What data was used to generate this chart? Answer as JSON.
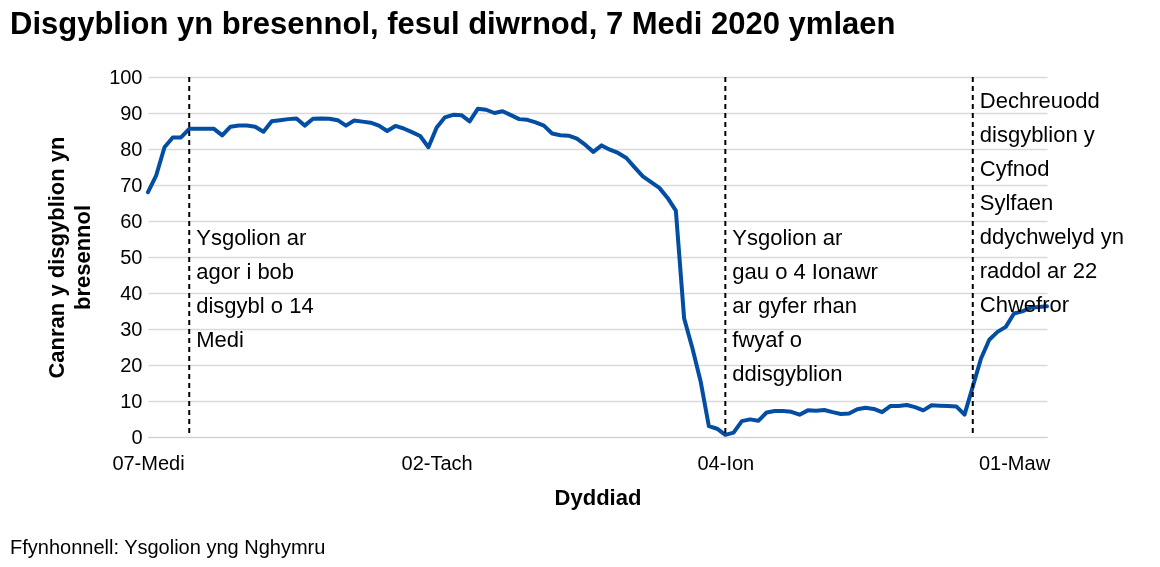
{
  "chart_data": {
    "type": "line",
    "title": "Disgyblion yn bresennol, fesul diwrnod, 7 Medi 2020 ymlaen",
    "xlabel": "Dyddiad",
    "ylabel": "Canran y disgyblion yn bresennol",
    "categories": [
      "07-Medi",
      null,
      null,
      null,
      null,
      null,
      null,
      null,
      null,
      null,
      null,
      null,
      null,
      null,
      null,
      null,
      null,
      null,
      null,
      null,
      null,
      null,
      null,
      null,
      null,
      null,
      null,
      null,
      null,
      null,
      null,
      null,
      null,
      null,
      null,
      "02-Tach",
      null,
      null,
      null,
      null,
      null,
      null,
      null,
      null,
      null,
      null,
      null,
      null,
      null,
      null,
      null,
      null,
      null,
      null,
      null,
      null,
      null,
      null,
      null,
      null,
      null,
      null,
      null,
      null,
      null,
      null,
      null,
      null,
      null,
      null,
      "04-Ion",
      null,
      null,
      null,
      null,
      null,
      null,
      null,
      null,
      null,
      null,
      null,
      null,
      null,
      null,
      null,
      null,
      null,
      null,
      null,
      null,
      null,
      null,
      null,
      null,
      null,
      null,
      null,
      null,
      null,
      null,
      null,
      null,
      null,
      null,
      "01-Maw",
      null,
      null,
      null,
      null
    ],
    "series": [
      {
        "color": "#034ea2",
        "values": [
          68,
          72.7,
          80.5,
          83.2,
          83.2,
          85.6,
          85.6,
          85.6,
          85.6,
          83.8,
          86.2,
          86.5,
          86.5,
          86.2,
          84.8,
          87.7,
          88,
          88.3,
          88.5,
          86.5,
          88.4,
          88.5,
          88.4,
          88,
          86.5,
          87.9,
          87.6,
          87.3,
          86.5,
          85,
          86.4,
          85.7,
          84.7,
          83.6,
          80.5,
          86,
          88.8,
          89.5,
          89.4,
          87.7,
          91.2,
          90.9,
          90,
          90.5,
          89.4,
          88.3,
          88.1,
          87.4,
          86.5,
          84.3,
          83.8,
          83.7,
          82.9,
          81.2,
          79.2,
          81,
          79.8,
          78.9,
          77.5,
          74.9,
          72.4,
          70.8,
          69.2,
          66.4,
          62.9,
          33,
          24.7,
          15.5,
          3,
          2.3,
          0.6,
          1.2,
          4.4,
          4.9,
          4.5,
          6.8,
          7.2,
          7.2,
          7,
          6.2,
          7.4,
          7.3,
          7.5,
          6.9,
          6.4,
          6.5,
          7.7,
          8.1,
          7.8,
          6.9,
          8.6,
          8.6,
          8.9,
          8.3,
          7.4,
          8.8,
          8.7,
          8.6,
          8.5,
          6.2,
          14,
          21.8,
          27,
          29.2,
          30.6,
          34.3,
          34.9,
          35.9,
          36.1,
          36.3
        ]
      }
    ],
    "ylim": [
      0,
      100
    ],
    "yticks": [
      0,
      10,
      20,
      30,
      40,
      50,
      60,
      70,
      80,
      90,
      100
    ],
    "grid": "y",
    "annotations": [
      "Ysgolion ar agor i bob disgybl o 14 Medi",
      "Ysgolion ar gau o 4 Ionawr ar gyfer rhan fwyaf o ddisgyblion",
      "Dechreuodd disgyblion y Cyfnod Sylfaen ddychwelyd yn raddol ar 22 Chwefror",
      "Ffynhonnell: Ysgolion yng Nghymru"
    ]
  }
}
